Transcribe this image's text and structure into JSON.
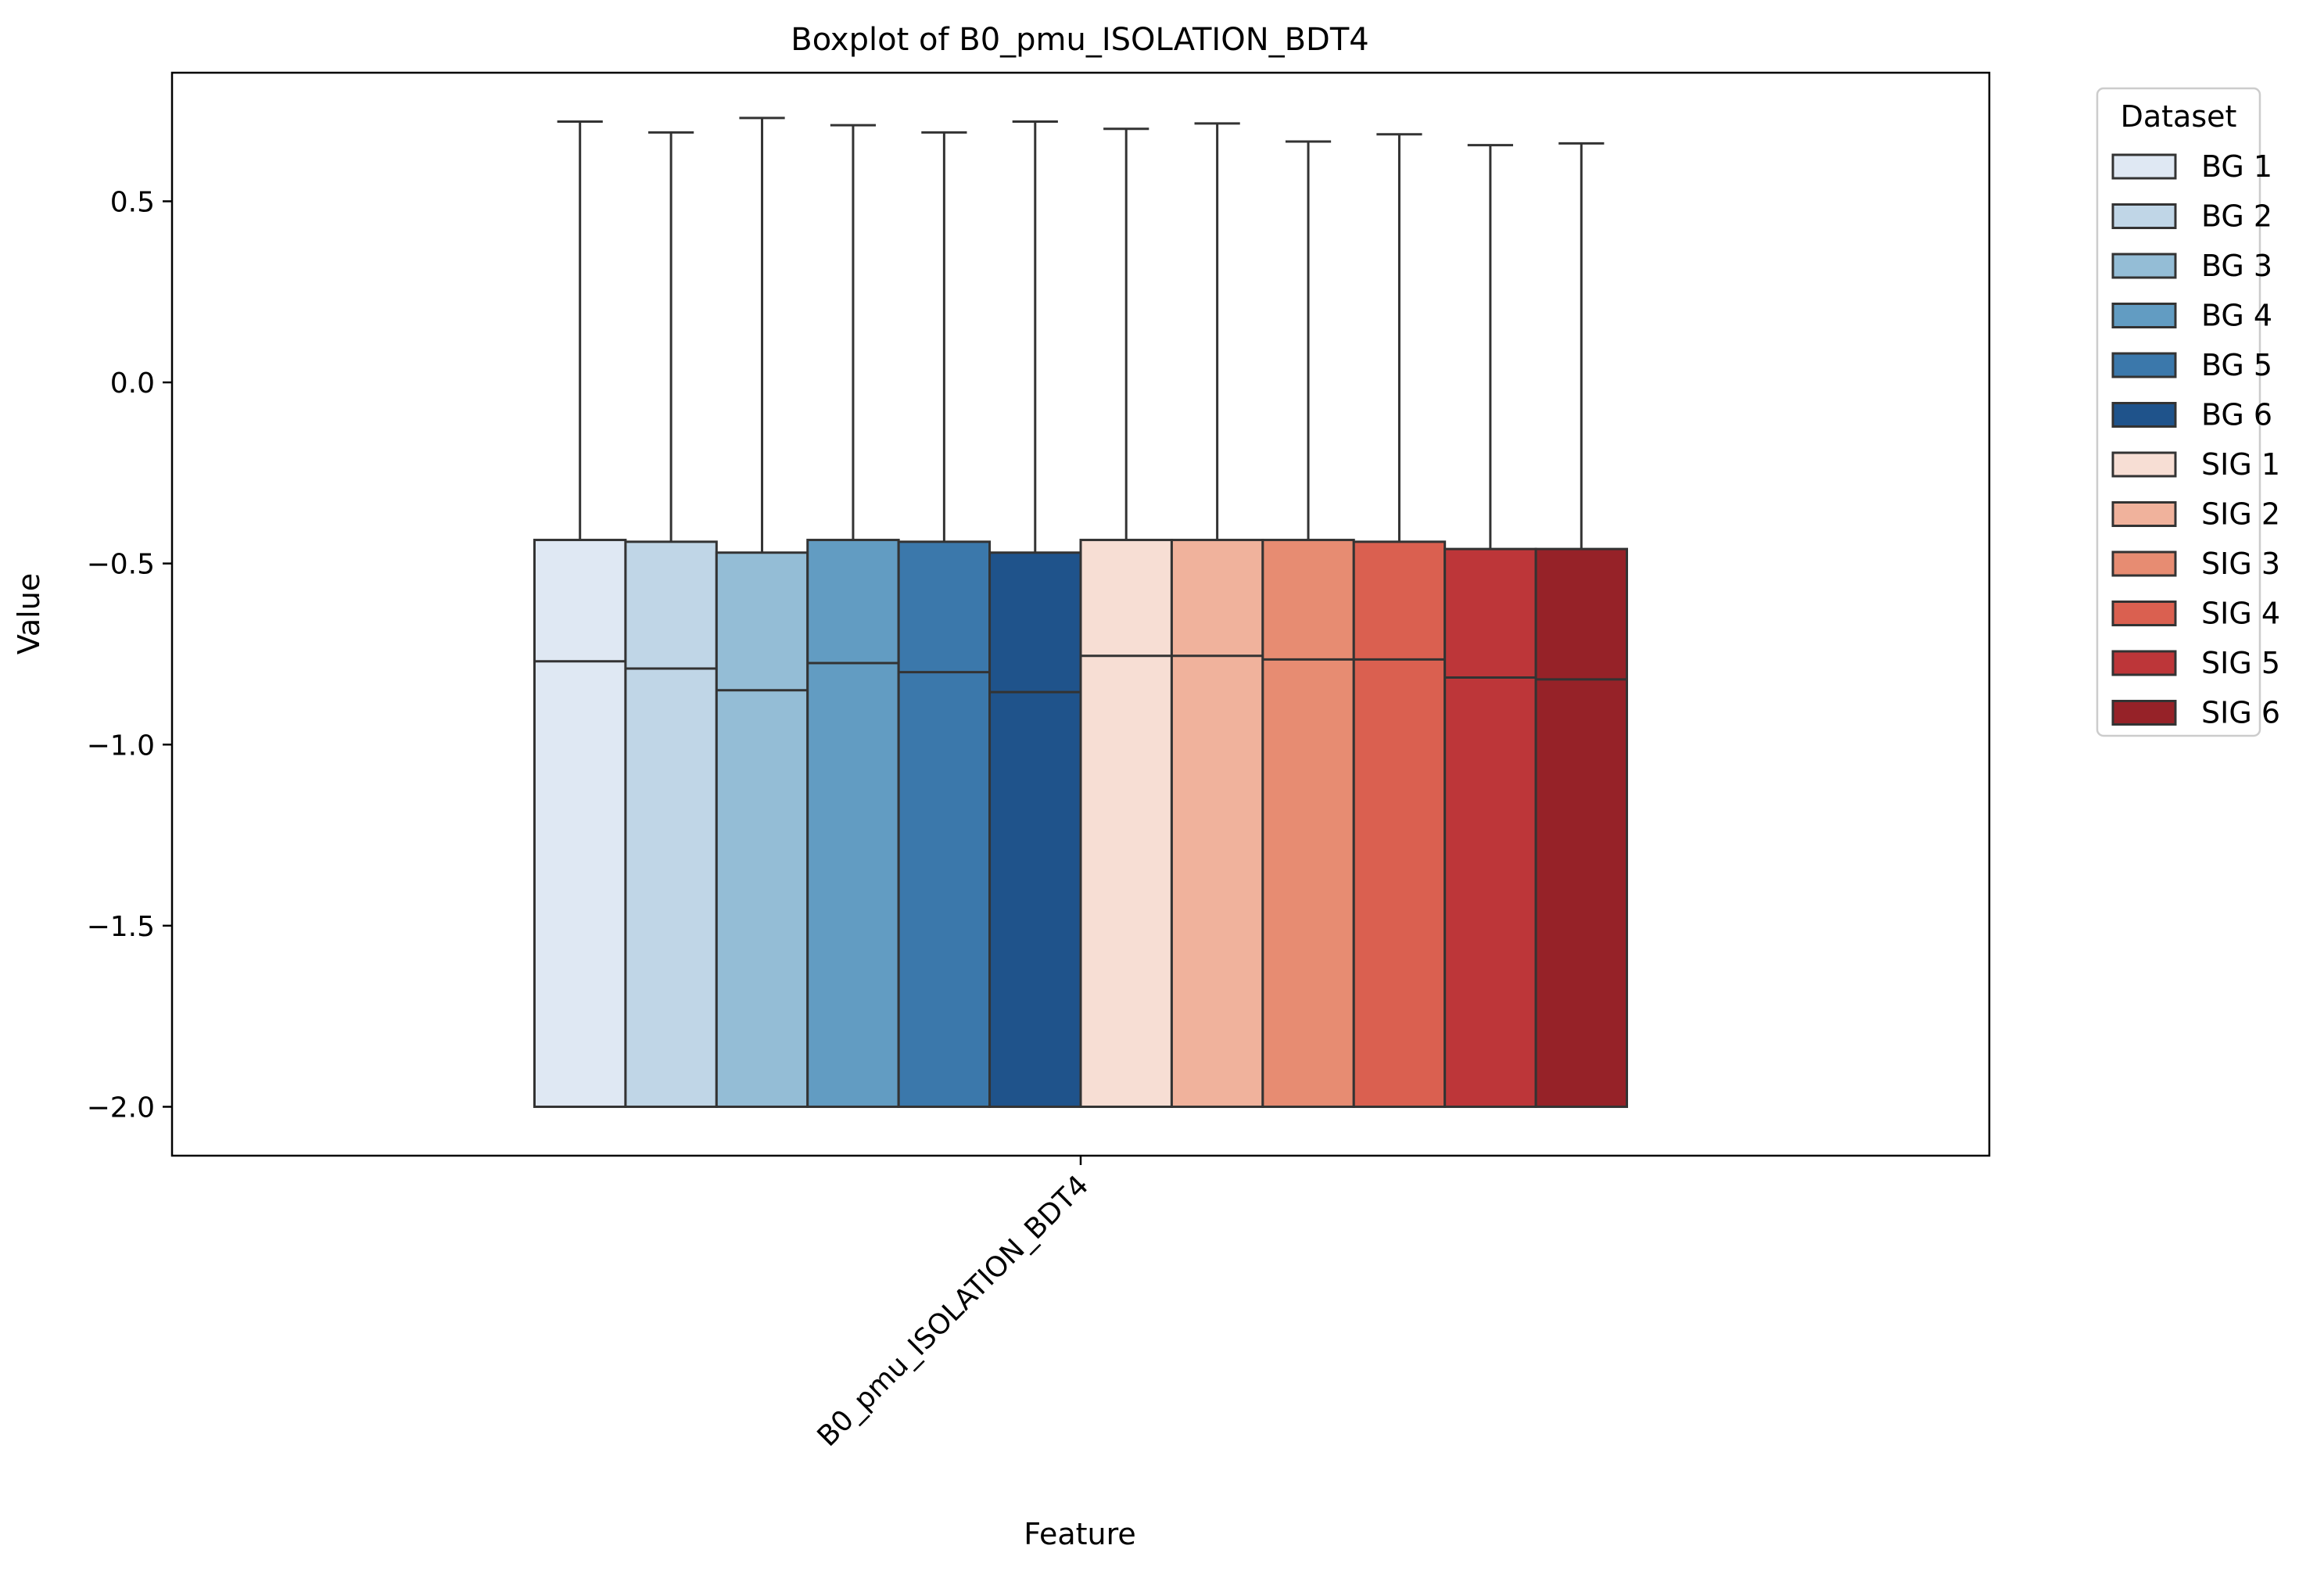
{
  "chart_data": {
    "type": "boxplot",
    "title": "Boxplot of B0_pmu_ISOLATION_BDT4",
    "xlabel": "Feature",
    "ylabel": "Value",
    "categories": [
      "B0_pmu_ISOLATION_BDT4"
    ],
    "ylim": [
      -2.135,
      0.855
    ],
    "yticks": [
      0.5,
      0.0,
      -0.5,
      -1.0,
      -1.5,
      -2.0
    ],
    "ytick_labels": [
      "0.5",
      "0.0",
      "−0.5",
      "−1.0",
      "−1.5",
      "−2.0"
    ],
    "grid": false,
    "legend": {
      "title": "Dataset",
      "placement": "outside-right-top"
    },
    "series": [
      {
        "name": "BG 1",
        "color": "#dfe8f3",
        "min": -2.0,
        "q1": -2.0,
        "median": -0.77,
        "q3": -0.435,
        "max": 0.72
      },
      {
        "name": "BG 2",
        "color": "#c0d6e7",
        "min": -2.0,
        "q1": -2.0,
        "median": -0.79,
        "q3": -0.44,
        "max": 0.69
      },
      {
        "name": "BG 3",
        "color": "#94bdd6",
        "min": -2.0,
        "q1": -2.0,
        "median": -0.85,
        "q3": -0.47,
        "max": 0.73
      },
      {
        "name": "BG 4",
        "color": "#629cc2",
        "min": -2.0,
        "q1": -2.0,
        "median": -0.775,
        "q3": -0.435,
        "max": 0.71
      },
      {
        "name": "BG 5",
        "color": "#3b78ab",
        "min": -2.0,
        "q1": -2.0,
        "median": -0.8,
        "q3": -0.44,
        "max": 0.69
      },
      {
        "name": "BG 6",
        "color": "#1f538b",
        "min": -2.0,
        "q1": -2.0,
        "median": -0.855,
        "q3": -0.47,
        "max": 0.72
      },
      {
        "name": "SIG 1",
        "color": "#f7ded4",
        "min": -2.0,
        "q1": -2.0,
        "median": -0.755,
        "q3": -0.435,
        "max": 0.7
      },
      {
        "name": "SIG 2",
        "color": "#f0b29c",
        "min": -2.0,
        "q1": -2.0,
        "median": -0.755,
        "q3": -0.435,
        "max": 0.715
      },
      {
        "name": "SIG 3",
        "color": "#e78c72",
        "min": -2.0,
        "q1": -2.0,
        "median": -0.765,
        "q3": -0.435,
        "max": 0.665
      },
      {
        "name": "SIG 4",
        "color": "#da6050",
        "min": -2.0,
        "q1": -2.0,
        "median": -0.765,
        "q3": -0.44,
        "max": 0.685
      },
      {
        "name": "SIG 5",
        "color": "#bd3639",
        "min": -2.0,
        "q1": -2.0,
        "median": -0.815,
        "q3": -0.46,
        "max": 0.655
      },
      {
        "name": "SIG 6",
        "color": "#962228",
        "min": -2.0,
        "q1": -2.0,
        "median": -0.82,
        "q3": -0.46,
        "max": 0.66
      }
    ]
  }
}
